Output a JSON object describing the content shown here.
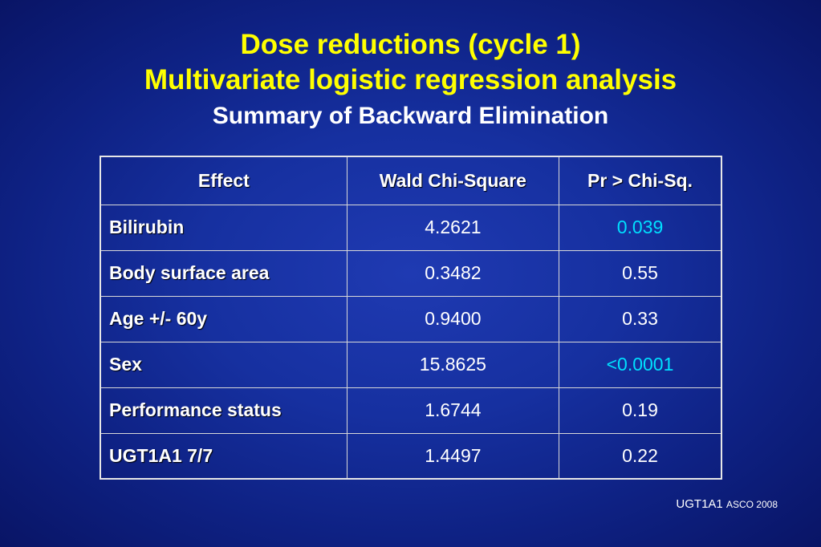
{
  "title": {
    "line1": "Dose reductions (cycle 1)",
    "line2": "Multivariate logistic regression analysis",
    "subtitle": "Summary of Backward Elimination"
  },
  "table": {
    "headers": [
      "Effect",
      "Wald Chi-Square",
      "Pr > Chi-Sq."
    ],
    "rows": [
      {
        "effect": "Bilirubin",
        "wald": "4.2621",
        "p": "0.039",
        "highlight": true
      },
      {
        "effect": "Body surface area",
        "wald": "0.3482",
        "p": "0.55",
        "highlight": false
      },
      {
        "effect": "Age +/- 60y",
        "wald": "0.9400",
        "p": "0.33",
        "highlight": false
      },
      {
        "effect": "Sex",
        "wald": "15.8625",
        "p": "<0.0001",
        "highlight": true
      },
      {
        "effect": "Performance status",
        "wald": "1.6744",
        "p": "0.19",
        "highlight": false
      },
      {
        "effect": "UGT1A1 7/7",
        "wald": "1.4497",
        "p": "0.22",
        "highlight": false
      }
    ]
  },
  "footer": {
    "main": "UGT1A1",
    "small": "ASCO 2008"
  },
  "colors": {
    "title": "#ffff00",
    "text": "#ffffff",
    "highlight": "#00e0ff",
    "background": "#1630a0"
  }
}
